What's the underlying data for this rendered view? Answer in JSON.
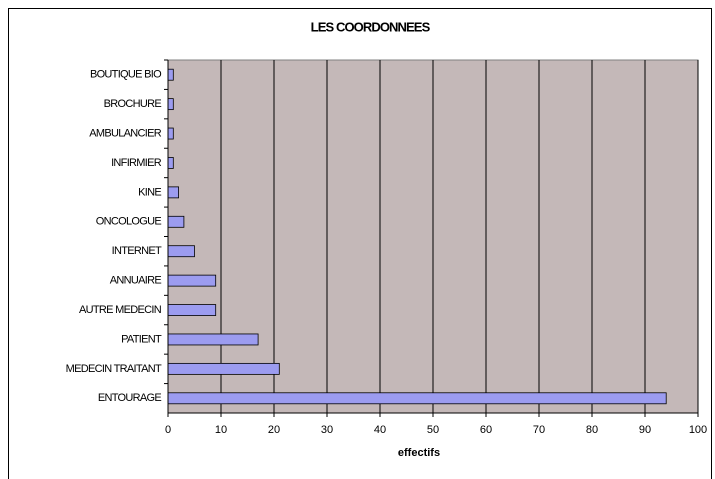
{
  "chart_data": {
    "type": "hbar",
    "title": "LES COORDONNEES",
    "x_label": "effectifs",
    "categories": [
      "BOUTIQUE BIO",
      "BROCHURE",
      "AMBULANCIER",
      "INFIRMIER",
      "KINE",
      "ONCOLOGUE",
      "INTERNET",
      "ANNUAIRE",
      "AUTRE MEDECIN",
      "PATIENT",
      "MEDECIN TRAITANT",
      "ENTOURAGE"
    ],
    "values": [
      1,
      1,
      1,
      1,
      2,
      3,
      5,
      9,
      9,
      17,
      21,
      94
    ],
    "color": "#9c9cf0",
    "background": "#c4b8b8",
    "xlim": [
      0,
      100
    ],
    "xticks": [
      0,
      10,
      20,
      30,
      40,
      50,
      60,
      70,
      80,
      90,
      100
    ],
    "grid": true
  }
}
